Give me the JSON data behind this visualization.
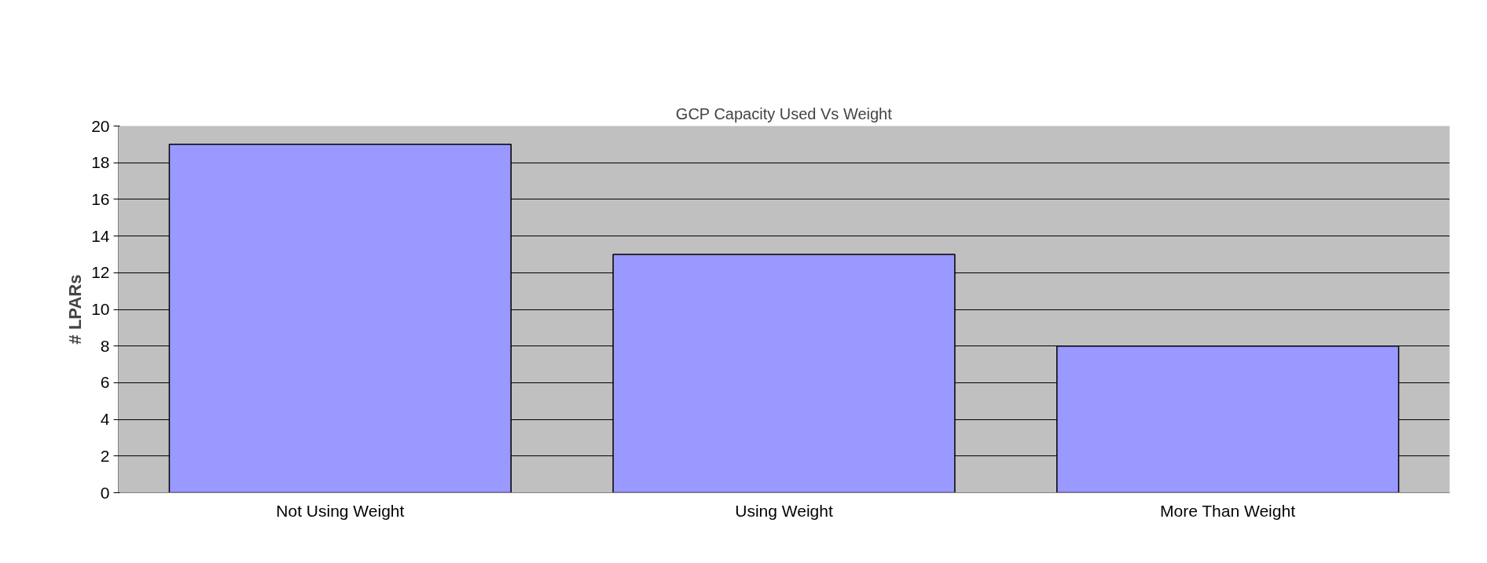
{
  "chart_data": {
    "type": "bar",
    "title": "GCP Capacity Used Vs Weight",
    "ylabel": "# LPARs",
    "categories": [
      "Not Using Weight",
      "Using Weight",
      "More Than Weight"
    ],
    "values": [
      19,
      13,
      8
    ],
    "color": "#9999ff",
    "ylim": [
      0,
      20
    ],
    "yticks": [
      0,
      2,
      4,
      6,
      8,
      10,
      12,
      14,
      16,
      18,
      20
    ],
    "grid": "y"
  }
}
